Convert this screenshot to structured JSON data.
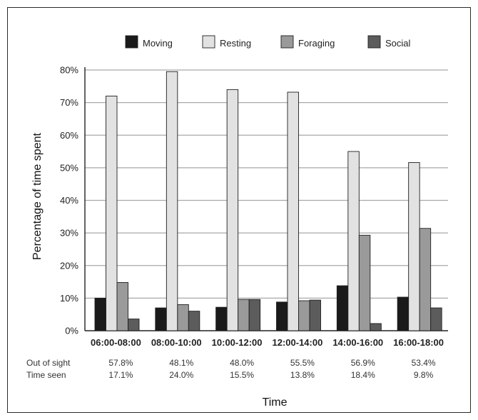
{
  "chart_data": {
    "type": "bar",
    "xlabel": "Time",
    "ylabel": "Percentage of time spent",
    "ylim": [
      0,
      80
    ],
    "yticks": [
      "0%",
      "10%",
      "20%",
      "30%",
      "40%",
      "50%",
      "60%",
      "70%",
      "80%"
    ],
    "grid": true,
    "legend_position": "top",
    "categories": [
      "06:00-08:00",
      "08:00-10:00",
      "10:00-12:00",
      "12:00-14:00",
      "14:00-16:00",
      "16:00-18:00"
    ],
    "series": [
      {
        "name": "Moving",
        "color": "#1a1a1a",
        "values": [
          10.0,
          7.0,
          7.2,
          8.8,
          13.8,
          10.3
        ]
      },
      {
        "name": "Resting",
        "color": "#e2e2e2",
        "values": [
          72.0,
          79.5,
          74.0,
          73.2,
          55.0,
          51.6
        ]
      },
      {
        "name": "Foraging",
        "color": "#9a9a9a",
        "values": [
          14.8,
          8.0,
          9.6,
          9.2,
          29.3,
          31.4
        ]
      },
      {
        "name": "Social",
        "color": "#5c5c5c",
        "values": [
          3.6,
          6.0,
          9.6,
          9.4,
          2.2,
          7.0
        ]
      }
    ]
  },
  "table": {
    "rows": [
      {
        "label": "Out of sight",
        "values": [
          "57.8%",
          "48.1%",
          "48.0%",
          "55.5%",
          "56.9%",
          "53.4%"
        ]
      },
      {
        "label": "Time seen",
        "values": [
          "17.1%",
          "24.0%",
          "15.5%",
          "13.8%",
          "18.4%",
          "9.8%"
        ]
      }
    ]
  }
}
